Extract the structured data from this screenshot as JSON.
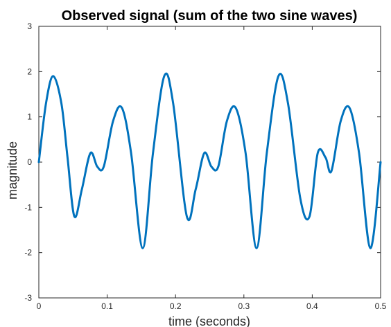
{
  "chart_data": {
    "type": "line",
    "title": "Observed signal (sum of the two sine waves)",
    "xlabel": "time (seconds)",
    "ylabel": "magnitude",
    "xlim": [
      0,
      0.5
    ],
    "ylim": [
      -3,
      3
    ],
    "x_ticks": [
      0,
      0.1,
      0.2,
      0.3,
      0.4,
      0.5
    ],
    "x_tick_labels": [
      "0",
      "0.1",
      "0.2",
      "0.3",
      "0.4",
      "0.5"
    ],
    "y_ticks": [
      -3,
      -2,
      -1,
      0,
      1,
      2,
      3
    ],
    "y_tick_labels": [
      "-3",
      "-2",
      "-1",
      "0",
      "1",
      "2",
      "3"
    ],
    "grid": false,
    "series": [
      {
        "color": "#0072BD",
        "x": [
          0,
          0.0105,
          0.021,
          0.033,
          0.042,
          0.052,
          0.063,
          0.0755,
          0.0855,
          0.095,
          0.1085,
          0.1215,
          0.135,
          0.152,
          0.167,
          0.1835,
          0.1965,
          0.2165,
          0.2295,
          0.242,
          0.2525,
          0.2625,
          0.275,
          0.288,
          0.3025,
          0.3185,
          0.3335,
          0.3505,
          0.3645,
          0.3825,
          0.396,
          0.408,
          0.4195,
          0.428,
          0.4415,
          0.4545,
          0.4685,
          0.485,
          0.5
        ],
        "y": [
          0,
          1.3,
          1.9,
          1.3,
          0.1,
          -1.2,
          -0.6,
          0.2,
          -0.1,
          -0.1,
          0.9,
          1.2,
          0.2,
          -1.9,
          0.2,
          1.9,
          1.3,
          -1.2,
          -0.6,
          0.2,
          -0.1,
          -0.1,
          0.9,
          1.2,
          0.2,
          -1.9,
          0.2,
          1.9,
          1.3,
          -0.8,
          -1.2,
          0.2,
          0.1,
          -0.2,
          0.9,
          1.2,
          0.2,
          -1.9,
          0
        ]
      }
    ]
  }
}
